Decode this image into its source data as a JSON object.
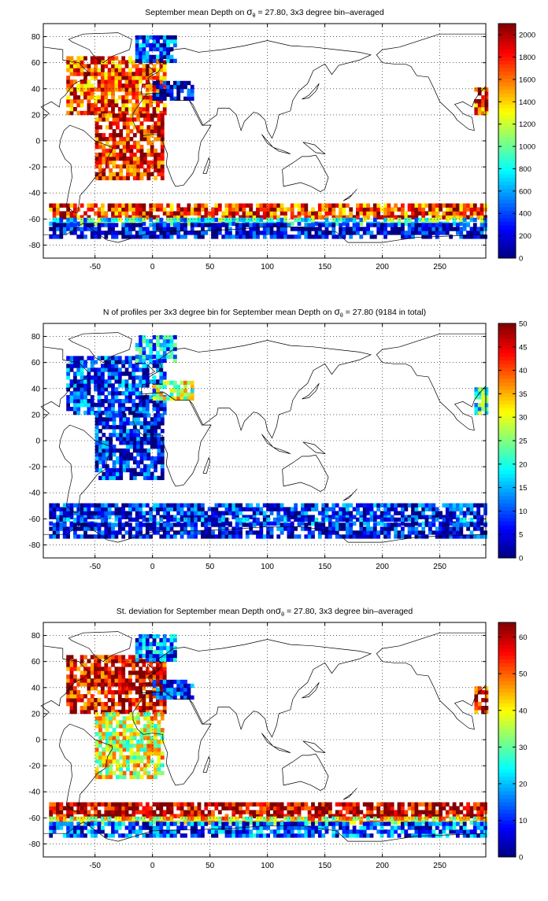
{
  "chart_data": [
    {
      "type": "heatmap",
      "title_prefix": "September mean Depth on ",
      "title_symbol": "σ",
      "title_subscript": "θ",
      "title_suffix": " = 27.80, 3x3 degree bin–averaged",
      "xticks": [
        -50,
        0,
        50,
        100,
        150,
        200,
        250
      ],
      "yticks": [
        80,
        60,
        40,
        20,
        0,
        -20,
        -40,
        -60,
        -80
      ],
      "xlim": [
        -95,
        290
      ],
      "ylim": [
        -90,
        90
      ],
      "colorbar": {
        "min": 0,
        "max": 2100,
        "ticks": [
          0,
          200,
          400,
          600,
          800,
          1000,
          1200,
          1400,
          1600,
          1800,
          2000
        ]
      },
      "regions": [
        {
          "name": "north-atlantic",
          "lon": [
            -75,
            10
          ],
          "lat": [
            20,
            65
          ],
          "value": 1700
        },
        {
          "name": "nordic-seas",
          "lon": [
            -15,
            20
          ],
          "lat": [
            60,
            80
          ],
          "value": 350
        },
        {
          "name": "mediterranean",
          "lon": [
            0,
            35
          ],
          "lat": [
            31,
            44
          ],
          "value": 100
        },
        {
          "name": "south-atlantic",
          "lon": [
            -50,
            10
          ],
          "lat": [
            -30,
            20
          ],
          "value": 1850
        },
        {
          "name": "arabian-sea",
          "lon": [
            280,
            290
          ],
          "lat": [
            20,
            40
          ],
          "value": 1750
        },
        {
          "name": "southern-ocean-north",
          "lon": [
            -90,
            290
          ],
          "lat": [
            -60,
            -50
          ],
          "value": 1750
        },
        {
          "name": "southern-ocean-mid",
          "lon": [
            -90,
            290
          ],
          "lat": [
            -65,
            -60
          ],
          "value": 800
        },
        {
          "name": "southern-ocean-south",
          "lon": [
            -90,
            290
          ],
          "lat": [
            -75,
            -65
          ],
          "value": 150
        }
      ]
    },
    {
      "type": "heatmap",
      "title_prefix": "N of profiles per 3x3 degree bin for September mean Depth on ",
      "title_symbol": "σ",
      "title_subscript": "θ",
      "title_suffix": " = 27.80 (9184 in total)",
      "xticks": [
        -50,
        0,
        50,
        100,
        150,
        200,
        250
      ],
      "yticks": [
        80,
        60,
        40,
        20,
        0,
        -20,
        -40,
        -60,
        -80
      ],
      "xlim": [
        -95,
        290
      ],
      "ylim": [
        -90,
        90
      ],
      "colorbar": {
        "min": 0,
        "max": 50,
        "ticks": [
          0,
          5,
          10,
          15,
          20,
          25,
          30,
          35,
          40,
          45,
          50
        ]
      },
      "regions": [
        {
          "name": "north-atlantic",
          "lon": [
            -75,
            10
          ],
          "lat": [
            20,
            65
          ],
          "value": 8
        },
        {
          "name": "nordic-seas",
          "lon": [
            -15,
            20
          ],
          "lat": [
            60,
            80
          ],
          "value": 15
        },
        {
          "name": "mediterranean",
          "lon": [
            0,
            35
          ],
          "lat": [
            31,
            44
          ],
          "value": 28
        },
        {
          "name": "south-atlantic",
          "lon": [
            -50,
            10
          ],
          "lat": [
            -30,
            20
          ],
          "value": 6
        },
        {
          "name": "arabian-sea",
          "lon": [
            280,
            290
          ],
          "lat": [
            20,
            40
          ],
          "value": 20
        },
        {
          "name": "southern-ocean-north",
          "lon": [
            -90,
            290
          ],
          "lat": [
            -60,
            -50
          ],
          "value": 6
        },
        {
          "name": "southern-ocean-mid",
          "lon": [
            -90,
            290
          ],
          "lat": [
            -65,
            -60
          ],
          "value": 10
        },
        {
          "name": "southern-ocean-south",
          "lon": [
            -90,
            290
          ],
          "lat": [
            -75,
            -65
          ],
          "value": 4
        }
      ]
    },
    {
      "type": "heatmap",
      "title_prefix": "St. deviation for September mean Depth on",
      "title_symbol": "σ",
      "title_subscript": "θ",
      "title_suffix": " = 27.80, 3x3 degree bin–averaged",
      "xticks": [
        -50,
        0,
        50,
        100,
        150,
        200,
        250
      ],
      "yticks": [
        80,
        60,
        40,
        20,
        0,
        -20,
        -40,
        -60,
        -80
      ],
      "xlim": [
        -95,
        290
      ],
      "ylim": [
        -90,
        90
      ],
      "colorbar": {
        "min": 0,
        "max": 64,
        "ticks": [
          0,
          10,
          20,
          30,
          40,
          50,
          60
        ]
      },
      "regions": [
        {
          "name": "north-atlantic",
          "lon": [
            -75,
            10
          ],
          "lat": [
            20,
            65
          ],
          "value": 58
        },
        {
          "name": "nordic-seas",
          "lon": [
            -15,
            20
          ],
          "lat": [
            60,
            80
          ],
          "value": 15
        },
        {
          "name": "mediterranean",
          "lon": [
            0,
            35
          ],
          "lat": [
            31,
            44
          ],
          "value": 8
        },
        {
          "name": "south-atlantic",
          "lon": [
            -50,
            10
          ],
          "lat": [
            -30,
            20
          ],
          "value": 38
        },
        {
          "name": "arabian-sea",
          "lon": [
            280,
            290
          ],
          "lat": [
            20,
            40
          ],
          "value": 55
        },
        {
          "name": "southern-ocean-north",
          "lon": [
            -90,
            290
          ],
          "lat": [
            -60,
            -50
          ],
          "value": 62
        },
        {
          "name": "southern-ocean-mid",
          "lon": [
            -90,
            290
          ],
          "lat": [
            -65,
            -60
          ],
          "value": 40
        },
        {
          "name": "southern-ocean-south",
          "lon": [
            -90,
            290
          ],
          "lat": [
            -75,
            -65
          ],
          "value": 12
        }
      ]
    }
  ]
}
